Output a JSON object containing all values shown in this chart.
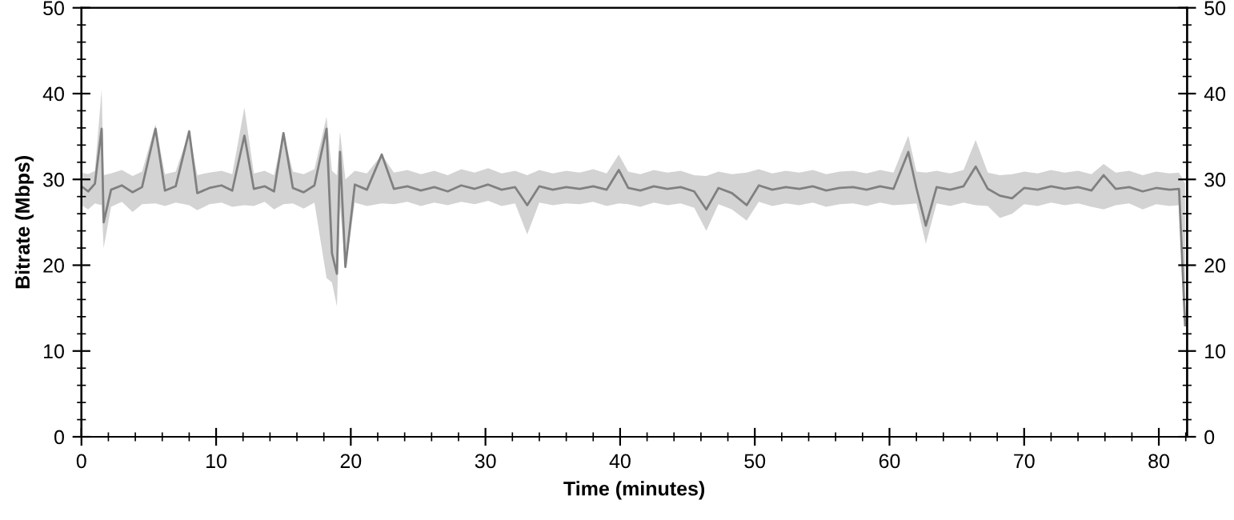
{
  "chart_data": {
    "type": "line",
    "xlabel": "Time (minutes)",
    "ylabel": "Bitrate (Mbps)",
    "xlim": [
      0,
      82.1
    ],
    "xticks": [
      0,
      10,
      20,
      30,
      40,
      50,
      60,
      70,
      80
    ],
    "ylim": [
      0,
      50
    ],
    "yticks": [
      0,
      10,
      20,
      30,
      40,
      50
    ],
    "y2lim": [
      0,
      50
    ],
    "y2ticks": [
      0,
      10,
      20,
      30,
      40,
      50
    ],
    "series": [
      {
        "color": "#808080",
        "x": [
          0,
          0.5,
          1.0,
          1.5,
          1.65,
          2.2,
          3.0,
          3.8,
          4.5,
          5.5,
          6.2,
          7.0,
          8.0,
          8.6,
          9.5,
          10.4,
          11.2,
          12.1,
          12.8,
          13.6,
          14.3,
          15.0,
          15.7,
          16.5,
          17.3,
          18.2,
          18.6,
          18.97,
          19.2,
          19.6,
          20.3,
          21.2,
          22.3,
          23.2,
          24.2,
          25.2,
          26.2,
          27.2,
          28.2,
          29.2,
          30.2,
          31.2,
          32.2,
          33.1,
          34.0,
          35.0,
          36.0,
          37.0,
          38.0,
          39.0,
          39.9,
          40.6,
          41.5,
          42.5,
          43.5,
          44.5,
          45.5,
          46.4,
          47.3,
          48.3,
          49.4,
          50.3,
          51.3,
          52.3,
          53.3,
          54.3,
          55.3,
          56.3,
          57.3,
          58.3,
          59.3,
          60.3,
          61.4,
          62.0,
          62.7,
          63.5,
          64.5,
          65.5,
          66.4,
          67.3,
          68.2,
          69.1,
          70.0,
          71.0,
          72.0,
          73.0,
          74.0,
          75.0,
          75.9,
          76.8,
          77.8,
          78.8,
          79.8,
          80.8,
          81.5,
          81.95
        ],
        "values": [
          29.2,
          28.6,
          29.5,
          35.9,
          25.0,
          28.8,
          29.3,
          28.5,
          29.1,
          35.9,
          28.7,
          29.2,
          35.6,
          28.4,
          29.0,
          29.3,
          28.7,
          35.1,
          28.9,
          29.2,
          28.6,
          35.4,
          29.0,
          28.5,
          29.3,
          35.9,
          21.4,
          19.0,
          33.2,
          19.8,
          29.4,
          28.8,
          32.9,
          28.9,
          29.2,
          28.7,
          29.1,
          28.6,
          29.3,
          28.9,
          29.4,
          28.8,
          29.1,
          27.0,
          29.2,
          28.8,
          29.1,
          28.9,
          29.2,
          28.8,
          31.1,
          29.0,
          28.7,
          29.2,
          28.9,
          29.1,
          28.6,
          26.5,
          29.0,
          28.4,
          27.0,
          29.3,
          28.8,
          29.1,
          28.9,
          29.2,
          28.7,
          29.0,
          29.1,
          28.8,
          29.2,
          28.9,
          33.2,
          29.0,
          24.6,
          29.1,
          28.8,
          29.2,
          31.5,
          28.9,
          28.1,
          27.8,
          29.0,
          28.8,
          29.2,
          28.9,
          29.1,
          28.7,
          30.5,
          28.9,
          29.1,
          28.6,
          29.0,
          28.8,
          28.9,
          13.0
        ],
        "lower": [
          27.0,
          26.5,
          27.2,
          27.0,
          22.0,
          26.8,
          27.4,
          26.2,
          27.1,
          27.2,
          26.9,
          27.3,
          27.0,
          26.4,
          27.1,
          27.3,
          26.8,
          27.0,
          26.9,
          27.4,
          26.5,
          27.1,
          27.2,
          26.6,
          27.3,
          18.5,
          18.0,
          15.2,
          27.0,
          19.5,
          27.3,
          26.9,
          27.2,
          27.1,
          27.4,
          26.9,
          27.3,
          27.0,
          27.4,
          27.1,
          27.5,
          26.9,
          27.2,
          23.6,
          27.3,
          27.0,
          27.2,
          27.1,
          27.4,
          26.9,
          27.2,
          27.1,
          26.8,
          27.3,
          27.0,
          27.2,
          26.7,
          24.0,
          27.1,
          26.5,
          25.2,
          27.4,
          26.9,
          27.2,
          27.0,
          27.3,
          26.8,
          27.1,
          27.2,
          26.9,
          27.3,
          27.0,
          27.1,
          27.2,
          22.5,
          27.2,
          26.9,
          27.3,
          27.0,
          26.9,
          25.5,
          26.0,
          27.1,
          26.9,
          27.3,
          27.0,
          27.2,
          26.8,
          26.5,
          27.0,
          27.2,
          26.5,
          27.1,
          26.9,
          27.0,
          13.0
        ],
        "upper": [
          30.8,
          30.6,
          31.0,
          40.5,
          30.5,
          30.7,
          31.1,
          30.4,
          30.9,
          36.4,
          30.6,
          30.9,
          35.6,
          30.5,
          30.8,
          31.0,
          30.6,
          38.4,
          30.7,
          31.0,
          30.5,
          35.4,
          30.9,
          30.6,
          31.2,
          37.3,
          31.0,
          30.5,
          35.6,
          30.0,
          31.0,
          30.7,
          32.9,
          30.8,
          31.1,
          30.6,
          31.0,
          30.5,
          31.2,
          30.8,
          31.3,
          30.7,
          31.0,
          30.5,
          31.1,
          30.7,
          31.0,
          30.8,
          31.2,
          30.7,
          32.9,
          30.9,
          30.6,
          31.1,
          30.8,
          31.0,
          30.5,
          30.4,
          30.9,
          30.6,
          30.8,
          31.2,
          30.7,
          31.0,
          30.8,
          31.1,
          30.6,
          30.9,
          31.0,
          30.7,
          31.1,
          30.8,
          35.1,
          30.9,
          30.8,
          31.0,
          30.7,
          31.1,
          34.6,
          30.8,
          30.5,
          30.6,
          30.9,
          30.7,
          31.1,
          30.8,
          31.0,
          30.6,
          31.8,
          30.8,
          31.0,
          30.5,
          30.9,
          30.7,
          30.8,
          29.5
        ]
      }
    ]
  }
}
